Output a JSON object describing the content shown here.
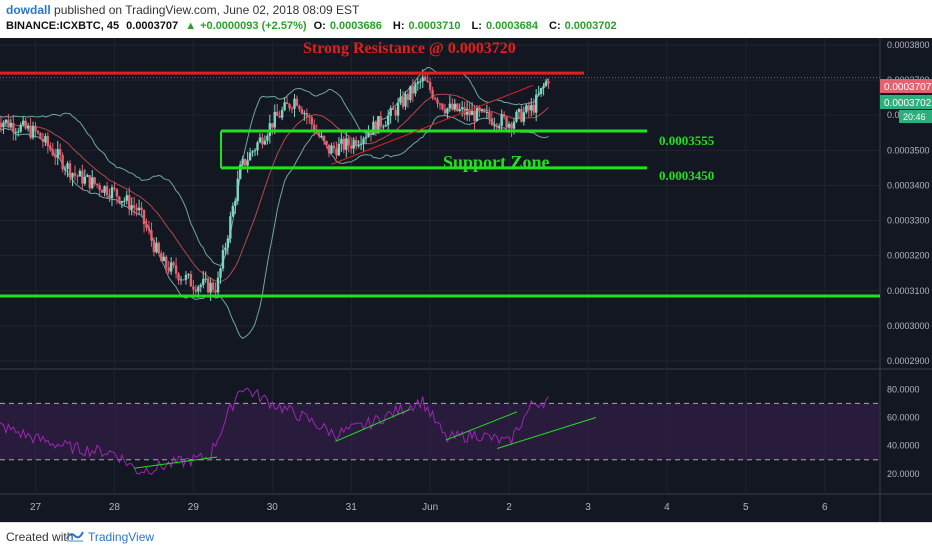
{
  "header": {
    "author": "dowdall",
    "published": "published on TradingView.com, June 02, 2018 08:09 EST",
    "symbol": "BINANCE:ICXBTC, 45",
    "last": "0.0003707",
    "change": "+0.0000093 (+2.57%)",
    "open_label": "O:",
    "open": "0.0003686",
    "high_label": "H:",
    "high": "0.0003710",
    "low_label": "L:",
    "low": "0.0003684",
    "close_label": "C:",
    "close": "0.0003702"
  },
  "annotations": {
    "resistance_label": "Strong Resistance @ 0.0003720",
    "support_zone_label": "Support Zone",
    "level_upper": "0.0003555",
    "level_lower": "0.0003450"
  },
  "price_badges": {
    "last": "0.0003707",
    "close": "0.0003702",
    "timer": "20:46"
  },
  "footer": {
    "created_with": "Created with",
    "brand": "TradingView"
  },
  "colors": {
    "background": "#131722",
    "resistance": "#e01f1f",
    "support": "#22e01f",
    "candle_up": "#7fd6c0",
    "candle_down": "#e5616f",
    "bollinger": "#6fa5a0",
    "rsi_line": "#9c27b0",
    "rsi_band": "#3a1f52"
  },
  "chart_data": [
    {
      "type": "candlestick",
      "title": "",
      "price_axis_ticks": [
        "0.0003800",
        "0.0003700",
        "0.0003600",
        "0.0003500",
        "0.0003400",
        "0.0003300",
        "0.0003200",
        "0.0003100",
        "0.0003000",
        "0.0002900"
      ],
      "time_axis_ticks": [
        "27",
        "28",
        "29",
        "30",
        "31",
        "Jun",
        "2",
        "3",
        "4",
        "5",
        "6"
      ],
      "ylim": [
        0.000288,
        0.000382
      ],
      "horizontal_levels": [
        {
          "name": "Strong Resistance",
          "value": 0.000372,
          "color": "red"
        },
        {
          "name": "Support Zone upper",
          "value": 0.0003555,
          "color": "green"
        },
        {
          "name": "Support Zone lower",
          "value": 0.000345,
          "color": "green"
        },
        {
          "name": "Bottom support",
          "value": 0.0003085,
          "color": "green"
        }
      ],
      "trendline": {
        "from": {
          "t": 30.75,
          "p": 0.000346
        },
        "to": {
          "t": 33.3,
          "p": 0.0003685
        },
        "color": "red"
      },
      "approx_close_path": [
        {
          "t": 26.5,
          "p": 0.000359
        },
        {
          "t": 27.0,
          "p": 0.000355
        },
        {
          "t": 27.5,
          "p": 0.000343
        },
        {
          "t": 28.0,
          "p": 0.000338
        },
        {
          "t": 28.3,
          "p": 0.000333
        },
        {
          "t": 28.6,
          "p": 0.000318
        },
        {
          "t": 29.0,
          "p": 0.000312
        },
        {
          "t": 29.3,
          "p": 0.000311
        },
        {
          "t": 29.6,
          "p": 0.000345
        },
        {
          "t": 30.0,
          "p": 0.000358
        },
        {
          "t": 30.3,
          "p": 0.000365
        },
        {
          "t": 30.7,
          "p": 0.00035
        },
        {
          "t": 31.0,
          "p": 0.000352
        },
        {
          "t": 31.5,
          "p": 0.00036
        },
        {
          "t": 31.9,
          "p": 0.00037
        },
        {
          "t": 32.2,
          "p": 0.000362
        },
        {
          "t": 32.6,
          "p": 0.00036
        },
        {
          "t": 33.0,
          "p": 0.000358
        },
        {
          "t": 33.3,
          "p": 0.000362
        },
        {
          "t": 33.5,
          "p": 0.0003707
        }
      ]
    },
    {
      "type": "line",
      "title": "",
      "rsi_axis_ticks": [
        "80.0000",
        "60.0000",
        "40.0000",
        "20.0000"
      ],
      "ylim": [
        10,
        88
      ],
      "bands": [
        70,
        30
      ],
      "approx_series": [
        {
          "t": 26.5,
          "v": 55
        },
        {
          "t": 27.0,
          "v": 45
        },
        {
          "t": 27.5,
          "v": 38
        },
        {
          "t": 28.0,
          "v": 35
        },
        {
          "t": 28.3,
          "v": 22
        },
        {
          "t": 28.8,
          "v": 28
        },
        {
          "t": 29.2,
          "v": 32
        },
        {
          "t": 29.6,
          "v": 82
        },
        {
          "t": 30.0,
          "v": 70
        },
        {
          "t": 30.4,
          "v": 60
        },
        {
          "t": 30.8,
          "v": 48
        },
        {
          "t": 31.2,
          "v": 55
        },
        {
          "t": 31.6,
          "v": 65
        },
        {
          "t": 31.9,
          "v": 72
        },
        {
          "t": 32.2,
          "v": 45
        },
        {
          "t": 32.6,
          "v": 48
        },
        {
          "t": 33.0,
          "v": 42
        },
        {
          "t": 33.3,
          "v": 70
        },
        {
          "t": 33.5,
          "v": 72
        }
      ]
    }
  ]
}
